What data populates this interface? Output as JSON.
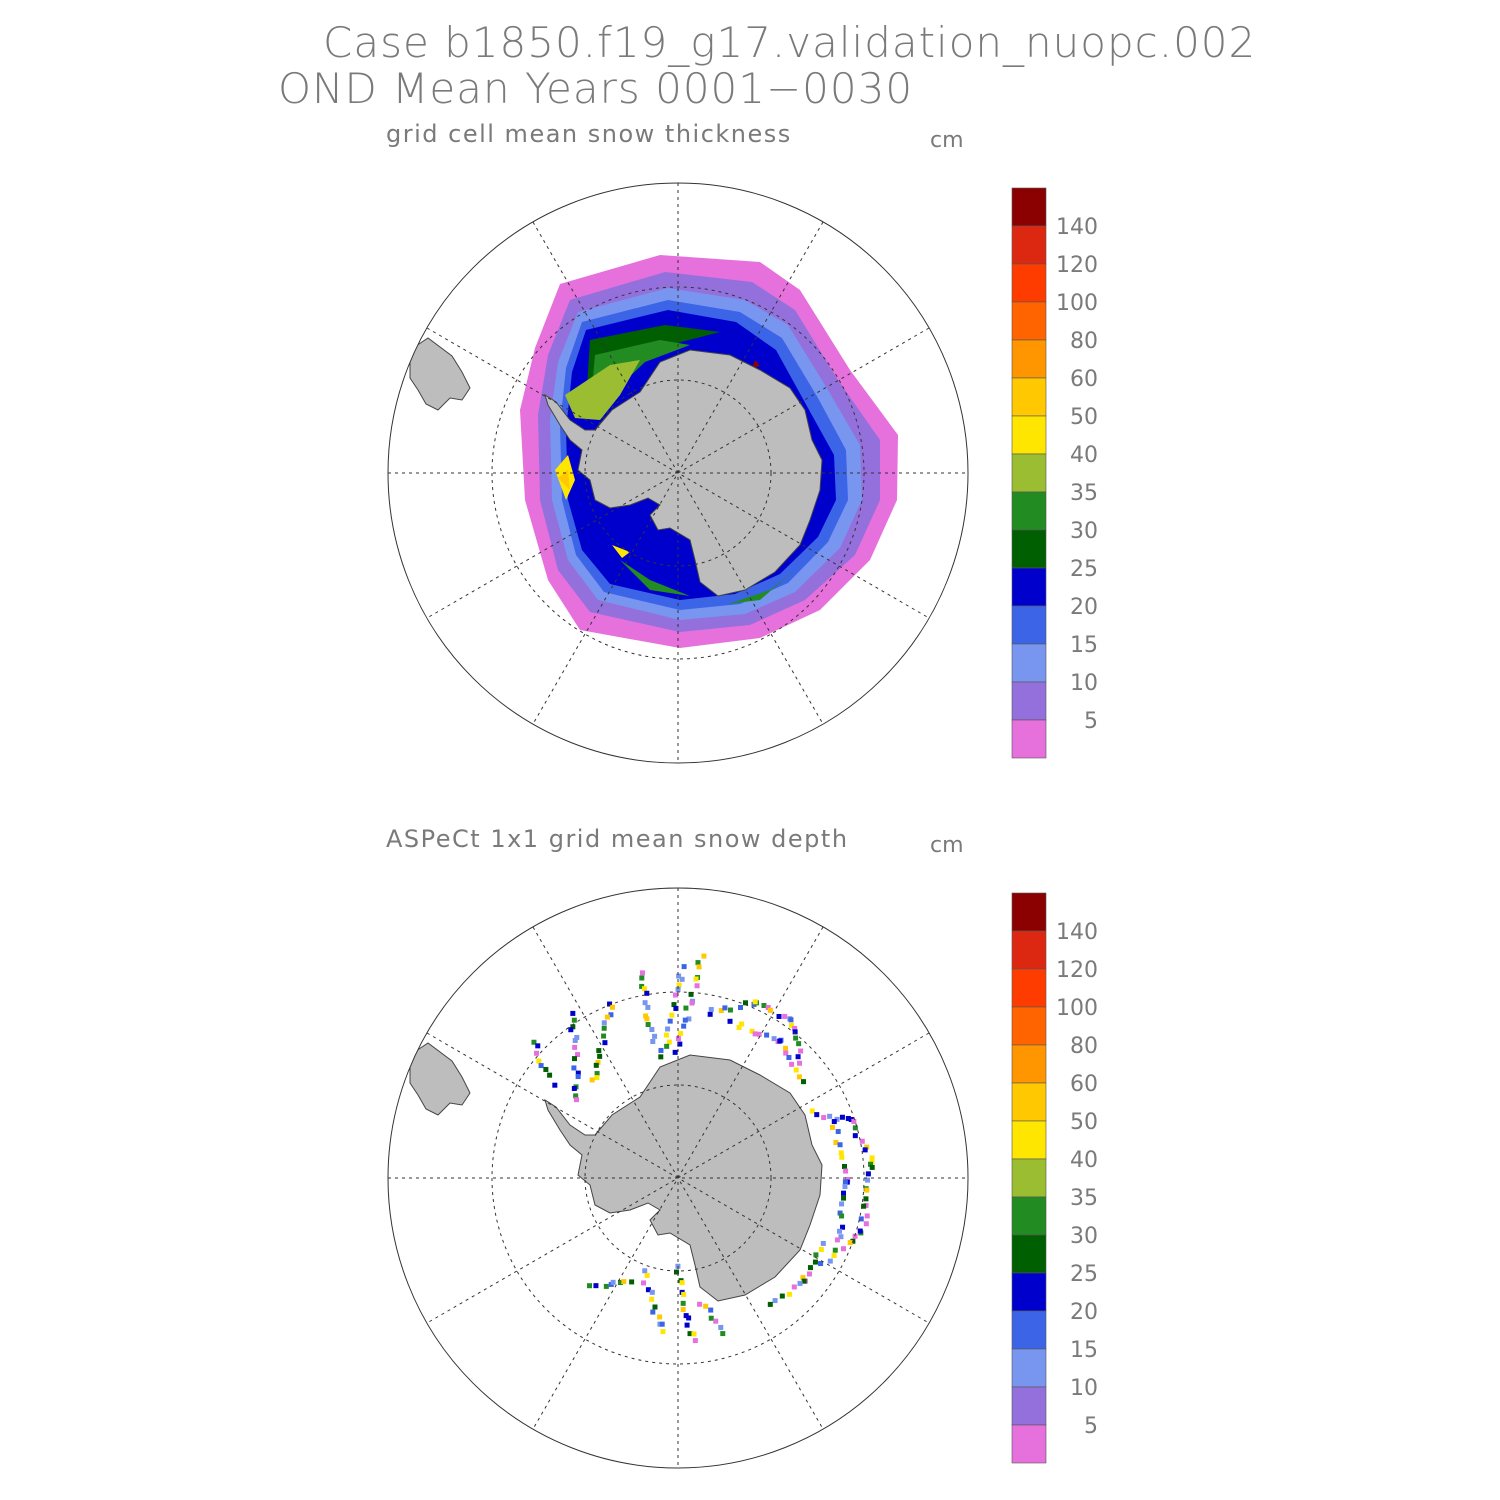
{
  "header": {
    "line1": "Case b1850.f19_g17.validation_nuopc.002",
    "line2": "OND Mean     Years 0001−0030"
  },
  "panels": [
    {
      "title": "grid cell mean snow thickness",
      "unit": "cm",
      "colorbar_labels": [
        "140",
        "120",
        "100",
        "80",
        "60",
        "50",
        "40",
        "35",
        "30",
        "25",
        "20",
        "15",
        "10",
        "5"
      ]
    },
    {
      "title": "ASPeCt 1x1 grid mean snow depth",
      "unit": "cm",
      "colorbar_labels": [
        "140",
        "120",
        "100",
        "80",
        "60",
        "50",
        "40",
        "35",
        "30",
        "25",
        "20",
        "15",
        "10",
        "5"
      ]
    }
  ],
  "colors": {
    "land": "#bdbdbd",
    "scale": [
      "#8b0000",
      "#dc2810",
      "#ff3c00",
      "#ff6400",
      "#ff9600",
      "#ffc800",
      "#ffe600",
      "#9abd32",
      "#228b22",
      "#005f00",
      "#0000cd",
      "#3c64e6",
      "#7896f0",
      "#9370db",
      "#e670dc"
    ]
  }
}
